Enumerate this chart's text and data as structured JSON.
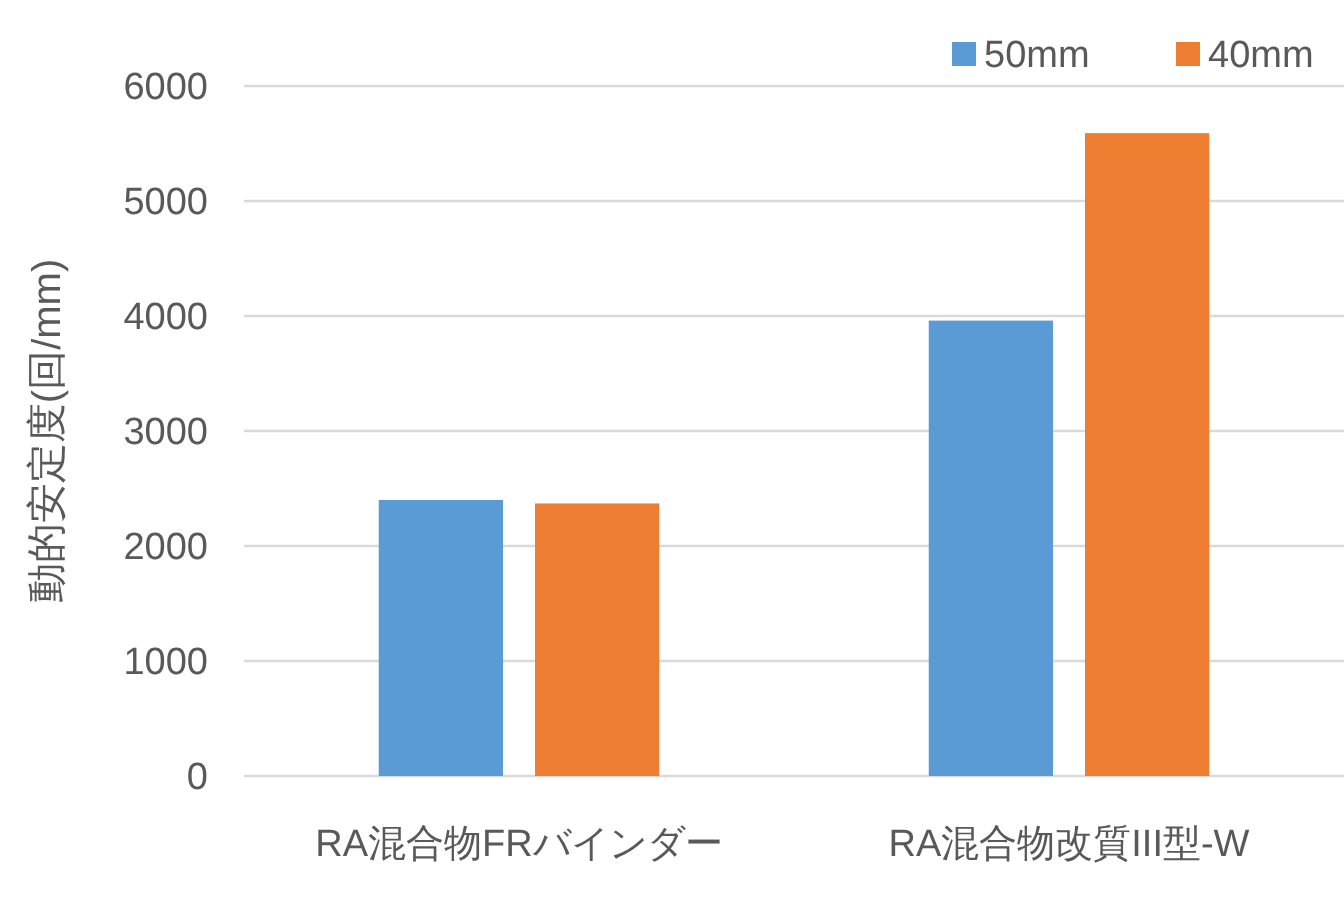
{
  "chart_data": {
    "type": "bar",
    "ylabel": "動的安定度(回/mm)",
    "categories": [
      "RA混合物FRバインダー",
      "RA混合物改質III型-W"
    ],
    "series": [
      {
        "name": "50mm",
        "color": "#5b9bd5",
        "values": [
          2400,
          3960
        ]
      },
      {
        "name": "40mm",
        "color": "#ed7d31",
        "values": [
          2370,
          5590
        ]
      }
    ],
    "ylim": [
      0,
      6000
    ],
    "yticks": [
      0,
      1000,
      2000,
      3000,
      4000,
      5000,
      6000
    ],
    "grid": "y",
    "legend": "top right"
  }
}
